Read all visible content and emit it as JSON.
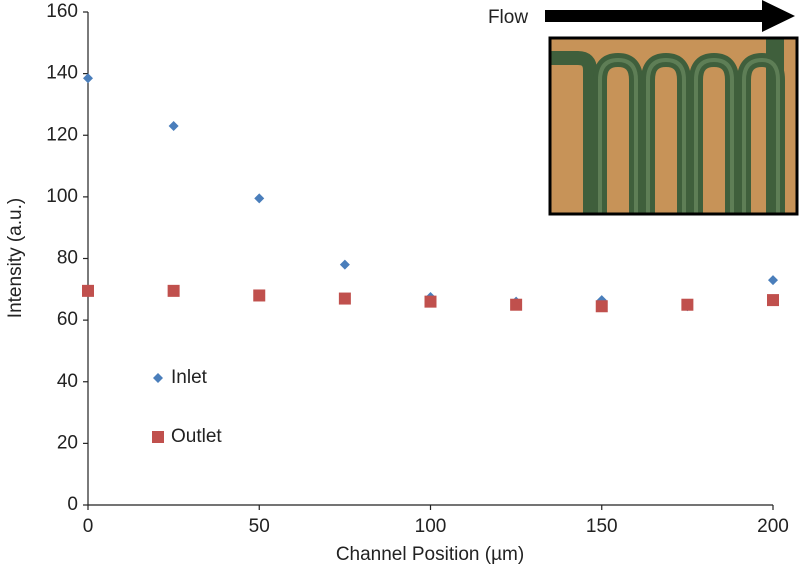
{
  "chart_data": {
    "type": "scatter",
    "x_label": "Channel Position (µm)",
    "y_label": "Intensity (a.u.)",
    "annotation": "Flow",
    "x": [
      0,
      25,
      50,
      75,
      100,
      125,
      150,
      175,
      200
    ],
    "series": [
      {
        "name": "Inlet",
        "color": "#4a7ebb",
        "marker": "diamond",
        "values": [
          138.5,
          123,
          99.5,
          78,
          67.5,
          66,
          66.5,
          64.5,
          73
        ]
      },
      {
        "name": "Outlet",
        "color": "#c0504d",
        "marker": "square",
        "values": [
          69.5,
          69.5,
          68,
          67,
          66,
          65,
          64.5,
          65,
          66.5
        ]
      }
    ],
    "xlim": [
      0,
      200
    ],
    "xticks": [
      0,
      50,
      100,
      150,
      200
    ],
    "ylim": [
      0,
      160
    ],
    "yticks": [
      0,
      20,
      40,
      60,
      80,
      100,
      120,
      140,
      160
    ],
    "grid": false,
    "legend": "left"
  }
}
